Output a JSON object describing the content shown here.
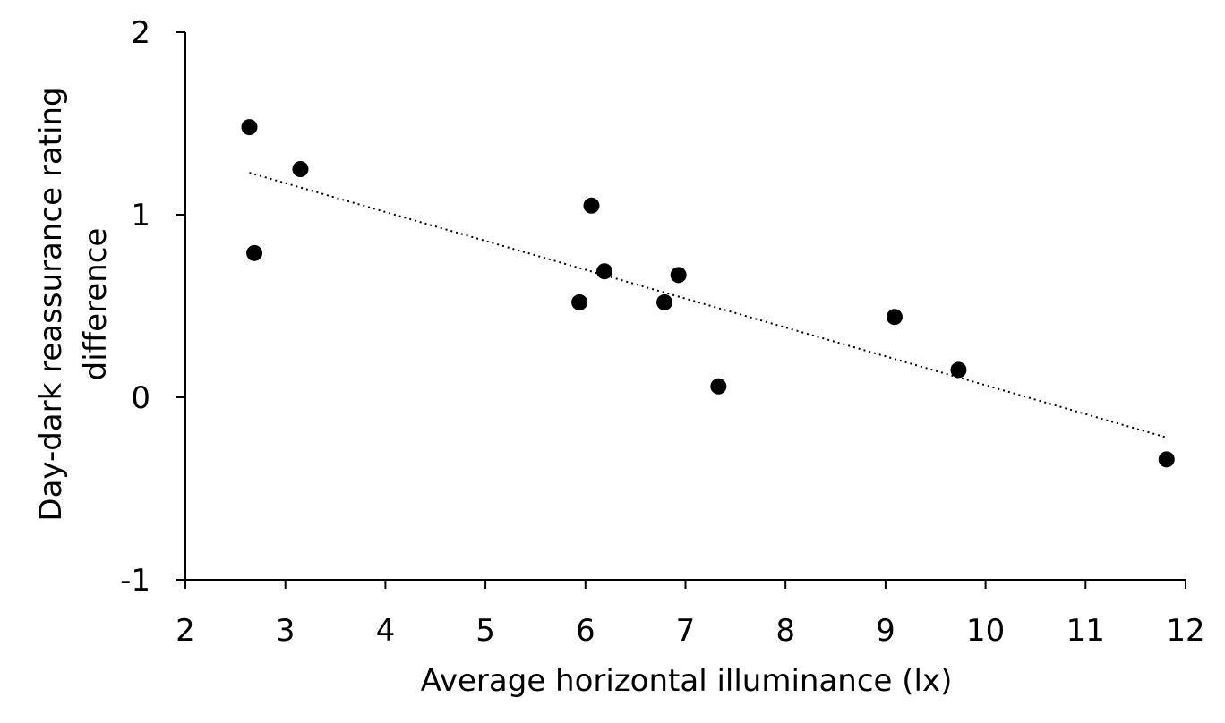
{
  "chart_data": {
    "type": "scatter",
    "xlabel": "Average horizontal illuminance (lx)",
    "ylabel_lines": [
      "Day-dark reassurance rating",
      "difference"
    ],
    "xlim": [
      2,
      12
    ],
    "ylim": [
      -1,
      2
    ],
    "x_ticks": [
      2,
      3,
      4,
      5,
      6,
      7,
      8,
      9,
      10,
      11,
      12
    ],
    "y_ticks": [
      -1,
      0,
      1,
      2
    ],
    "x_tick_labels": [
      "2",
      "3",
      "4",
      "5",
      "6",
      "7",
      "8",
      "9",
      "10",
      "11",
      "12"
    ],
    "y_tick_labels": [
      "-1",
      "0",
      "1",
      "2"
    ],
    "grid": false,
    "legend": false,
    "marker_color": "#000000",
    "points": [
      {
        "x": 2.64,
        "y": 1.48
      },
      {
        "x": 2.69,
        "y": 0.79
      },
      {
        "x": 3.15,
        "y": 1.25
      },
      {
        "x": 5.94,
        "y": 0.52
      },
      {
        "x": 6.06,
        "y": 1.05
      },
      {
        "x": 6.19,
        "y": 0.69
      },
      {
        "x": 6.79,
        "y": 0.52
      },
      {
        "x": 6.93,
        "y": 0.67
      },
      {
        "x": 7.33,
        "y": 0.06
      },
      {
        "x": 9.09,
        "y": 0.44
      },
      {
        "x": 9.73,
        "y": 0.15
      },
      {
        "x": 11.81,
        "y": -0.34
      }
    ],
    "trendline": {
      "type": "linear",
      "style": "dotted",
      "from": {
        "x": 2.64,
        "y": 1.23
      },
      "to": {
        "x": 11.81,
        "y": -0.22
      }
    }
  }
}
